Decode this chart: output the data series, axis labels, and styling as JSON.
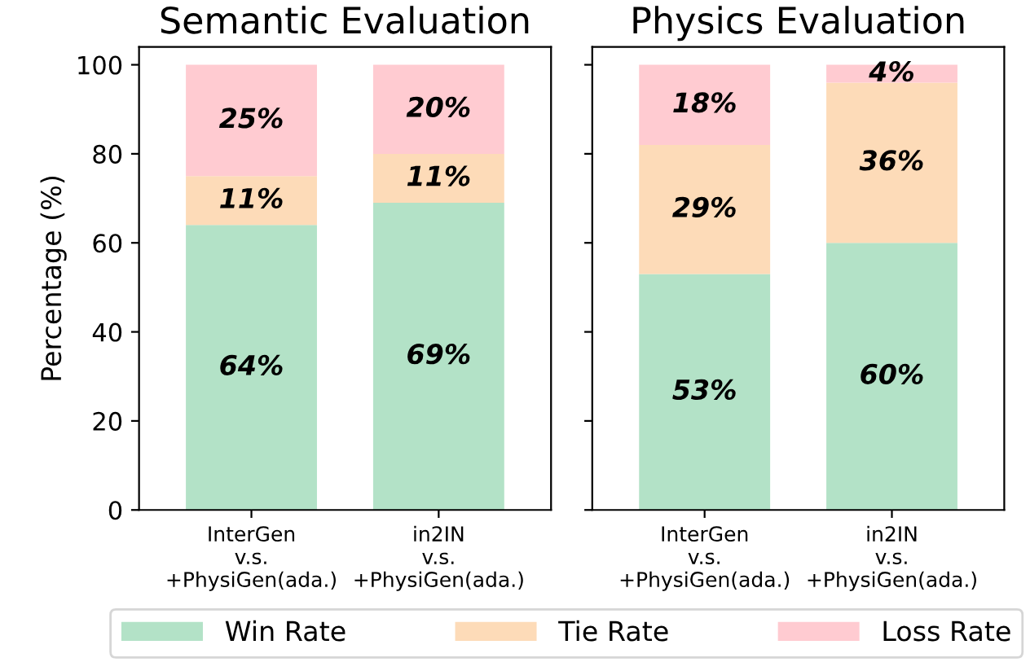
{
  "chart_data": [
    {
      "type": "bar",
      "stacked": true,
      "title": "Semantic Evaluation",
      "ylabel": "Percentage (%)",
      "categories": [
        "InterGen\nv.s.\n+PhysiGen(ada.)",
        "in2IN\nv.s.\n+PhysiGen(ada.)"
      ],
      "ylim": [
        0,
        104
      ],
      "yticks": [
        0,
        20,
        40,
        60,
        80,
        100
      ],
      "legend": "bottom",
      "series": [
        {
          "name": "Win Rate",
          "color": "#b3e2c7",
          "values": [
            64,
            69
          ],
          "value_labels": [
            "64%",
            "69%"
          ]
        },
        {
          "name": "Tie Rate",
          "color": "#fddbb8",
          "values": [
            11,
            11
          ],
          "value_labels": [
            "11%",
            "11%"
          ]
        },
        {
          "name": "Loss Rate",
          "color": "#ffcbd1",
          "values": [
            25,
            20
          ],
          "value_labels": [
            "25%",
            "20%"
          ]
        }
      ]
    },
    {
      "type": "bar",
      "stacked": true,
      "title": "Physics Evaluation",
      "categories": [
        "InterGen\nv.s.\n+PhysiGen(ada.)",
        "in2IN\nv.s.\n+PhysiGen(ada.)"
      ],
      "ylim": [
        0,
        104
      ],
      "yticks": [
        0,
        20,
        40,
        60,
        80,
        100
      ],
      "tick_labels": "x",
      "legend": "bottom",
      "series": [
        {
          "name": "Win Rate",
          "color": "#b3e2c7",
          "values": [
            53,
            60
          ],
          "value_labels": [
            "53%",
            "60%"
          ]
        },
        {
          "name": "Tie Rate",
          "color": "#fddbb8",
          "values": [
            29,
            36
          ],
          "value_labels": [
            "29%",
            "36%"
          ]
        },
        {
          "name": "Loss Rate",
          "color": "#ffcbd1",
          "values": [
            18,
            4
          ],
          "value_labels": [
            "18%",
            "4%"
          ]
        }
      ]
    }
  ]
}
